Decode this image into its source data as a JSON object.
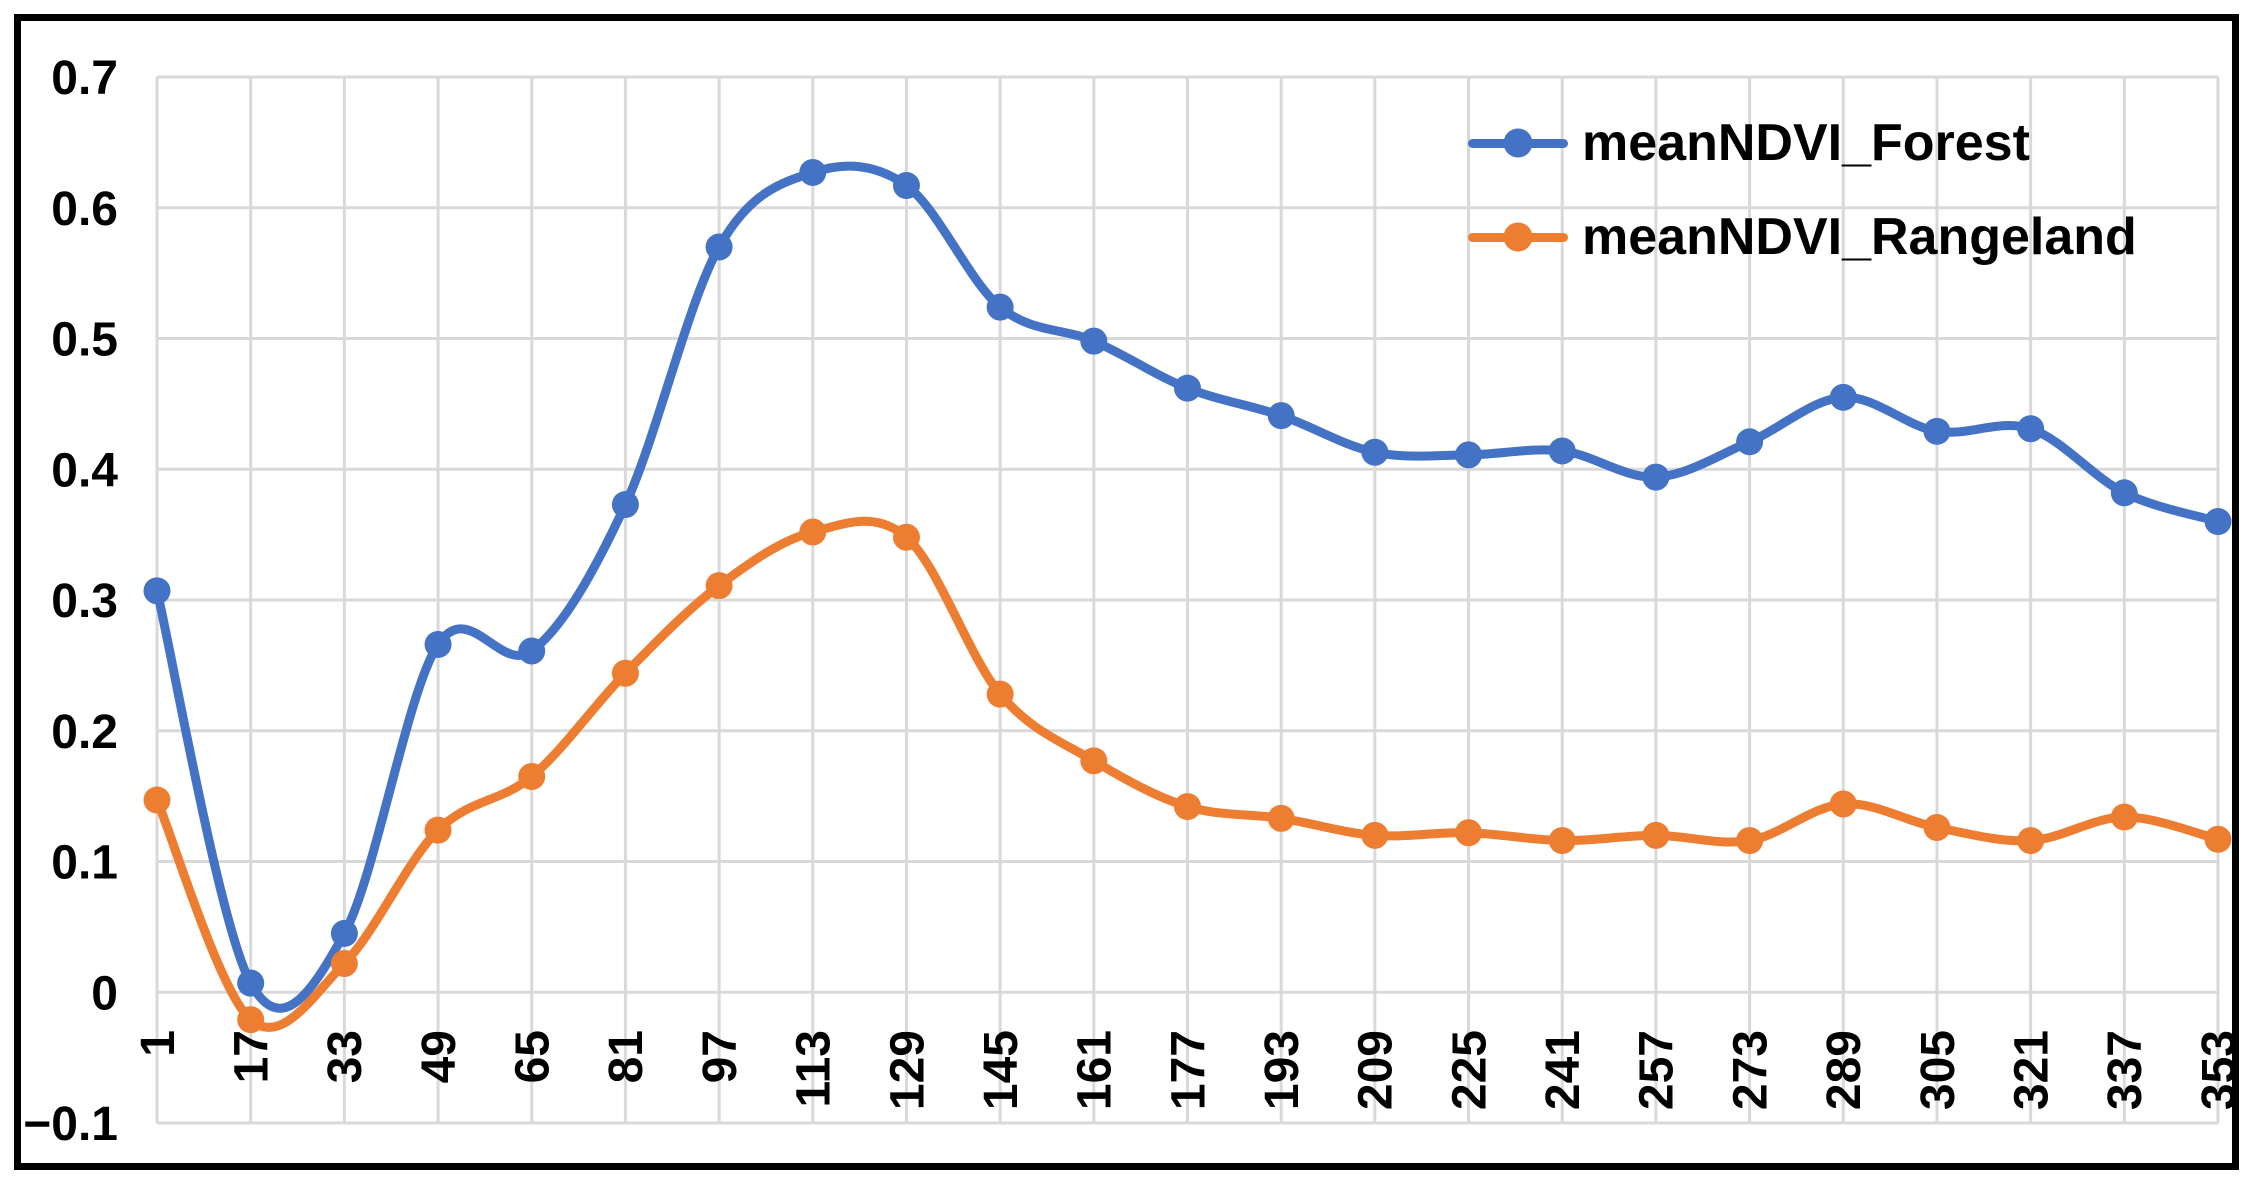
{
  "chart_data": {
    "type": "line",
    "title": "",
    "xlabel": "",
    "ylabel": "",
    "categories": [
      1,
      17,
      33,
      49,
      65,
      81,
      97,
      113,
      129,
      145,
      161,
      177,
      193,
      209,
      225,
      241,
      257,
      273,
      289,
      305,
      321,
      337,
      353
    ],
    "series": [
      {
        "name": "meanNDVI_Forest",
        "color": "#4472C4",
        "marker": "circle",
        "smooth": true,
        "values": [
          0.307,
          0.007,
          0.045,
          0.266,
          0.261,
          0.373,
          0.57,
          0.627,
          0.617,
          0.524,
          0.498,
          0.462,
          0.441,
          0.413,
          0.411,
          0.414,
          0.394,
          0.421,
          0.455,
          0.429,
          0.431,
          0.382,
          0.36
        ]
      },
      {
        "name": "meanNDVI_Rangeland",
        "color": "#ED7D31",
        "marker": "circle",
        "smooth": true,
        "values": [
          0.147,
          -0.021,
          0.022,
          0.124,
          0.165,
          0.244,
          0.311,
          0.352,
          0.348,
          0.228,
          0.177,
          0.142,
          0.133,
          0.12,
          0.122,
          0.116,
          0.12,
          0.116,
          0.144,
          0.126,
          0.116,
          0.134,
          0.117
        ]
      }
    ],
    "ylim": [
      -0.1,
      0.7
    ],
    "y_step": 0.1,
    "y_tick_labels": [
      "0.7",
      "0.6",
      "0.5",
      "0.4",
      "0.3",
      "0.2",
      "0.1",
      "0",
      "−0.1"
    ],
    "grid": true,
    "gridline_color": "#D9D9D9",
    "axis_text_color": "#000000",
    "background_color": "#FFFFFF",
    "frame_color": "#000000",
    "legend_position": "top-right",
    "x_labels_rotation": "90-ccw"
  }
}
